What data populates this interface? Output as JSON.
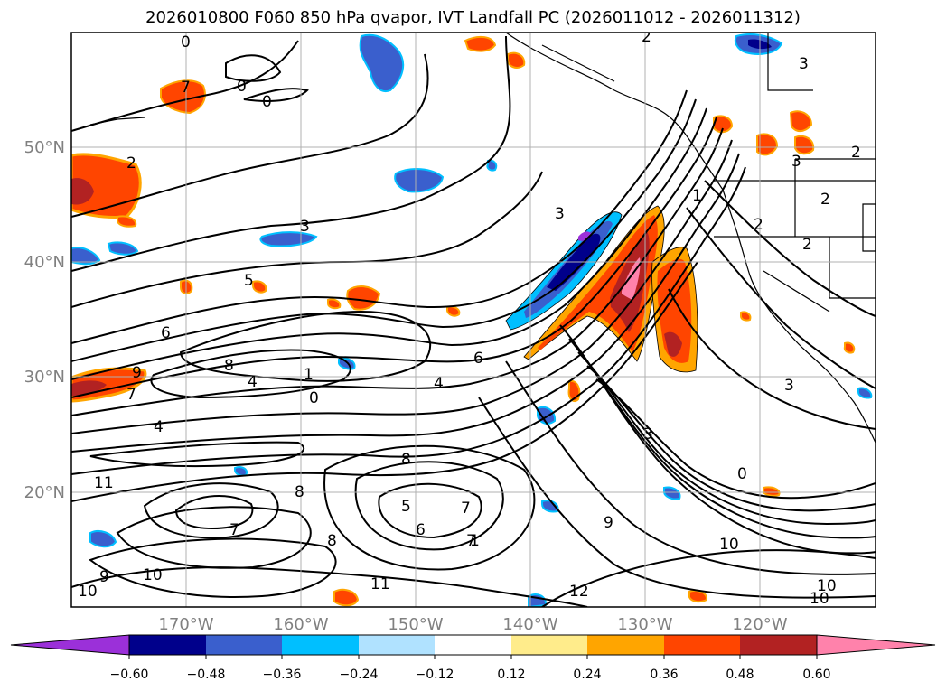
{
  "title": "2026010800 F060 850 hPa qvapor, IVT Landfall PC (2026011012 - 2026011312)",
  "lat_labels": [
    "50°N",
    "40°N",
    "30°N",
    "20°N"
  ],
  "lon_labels": [
    "170°W",
    "160°W",
    "150°W",
    "140°W",
    "130°W",
    "120°W"
  ],
  "colorbar": {
    "ticks": [
      "−0.60",
      "−0.48",
      "−0.36",
      "−0.24",
      "−0.12",
      "0.12",
      "0.24",
      "0.36",
      "0.48",
      "0.60"
    ],
    "colors": [
      "#9b30d9",
      "#00008b",
      "#3a5fcd",
      "#00bfff",
      "#b0e2ff",
      "#ffffff",
      "#ffec8b",
      "#ffa500",
      "#ff4500",
      "#b22222",
      "#ff82ab"
    ]
  },
  "contour_labels": [
    {
      "text": "0"
    },
    {
      "text": "0"
    },
    {
      "text": "0"
    },
    {
      "text": "2"
    },
    {
      "text": "2"
    },
    {
      "text": "3"
    },
    {
      "text": "3"
    },
    {
      "text": "3"
    },
    {
      "text": "3"
    },
    {
      "text": "2"
    },
    {
      "text": "2"
    },
    {
      "text": "1"
    },
    {
      "text": "2"
    },
    {
      "text": "2"
    },
    {
      "text": "3"
    },
    {
      "text": "5"
    },
    {
      "text": "6"
    },
    {
      "text": "8"
    },
    {
      "text": "4"
    },
    {
      "text": "1"
    },
    {
      "text": "0"
    },
    {
      "text": "9"
    },
    {
      "text": "7"
    },
    {
      "text": "4"
    },
    {
      "text": "11"
    },
    {
      "text": "8"
    },
    {
      "text": "7"
    },
    {
      "text": "8"
    },
    {
      "text": "8"
    },
    {
      "text": "5"
    },
    {
      "text": "6"
    },
    {
      "text": "7"
    },
    {
      "text": "7"
    },
    {
      "text": "9"
    },
    {
      "text": "10"
    },
    {
      "text": "0"
    },
    {
      "text": "3"
    },
    {
      "text": "11"
    },
    {
      "text": "10"
    },
    {
      "text": "10"
    },
    {
      "text": "9"
    },
    {
      "text": "12"
    },
    {
      "text": "10"
    },
    {
      "text": "10"
    },
    {
      "text": "4"
    },
    {
      "text": "6"
    },
    {
      "text": "7"
    },
    {
      "text": "1"
    }
  ]
}
